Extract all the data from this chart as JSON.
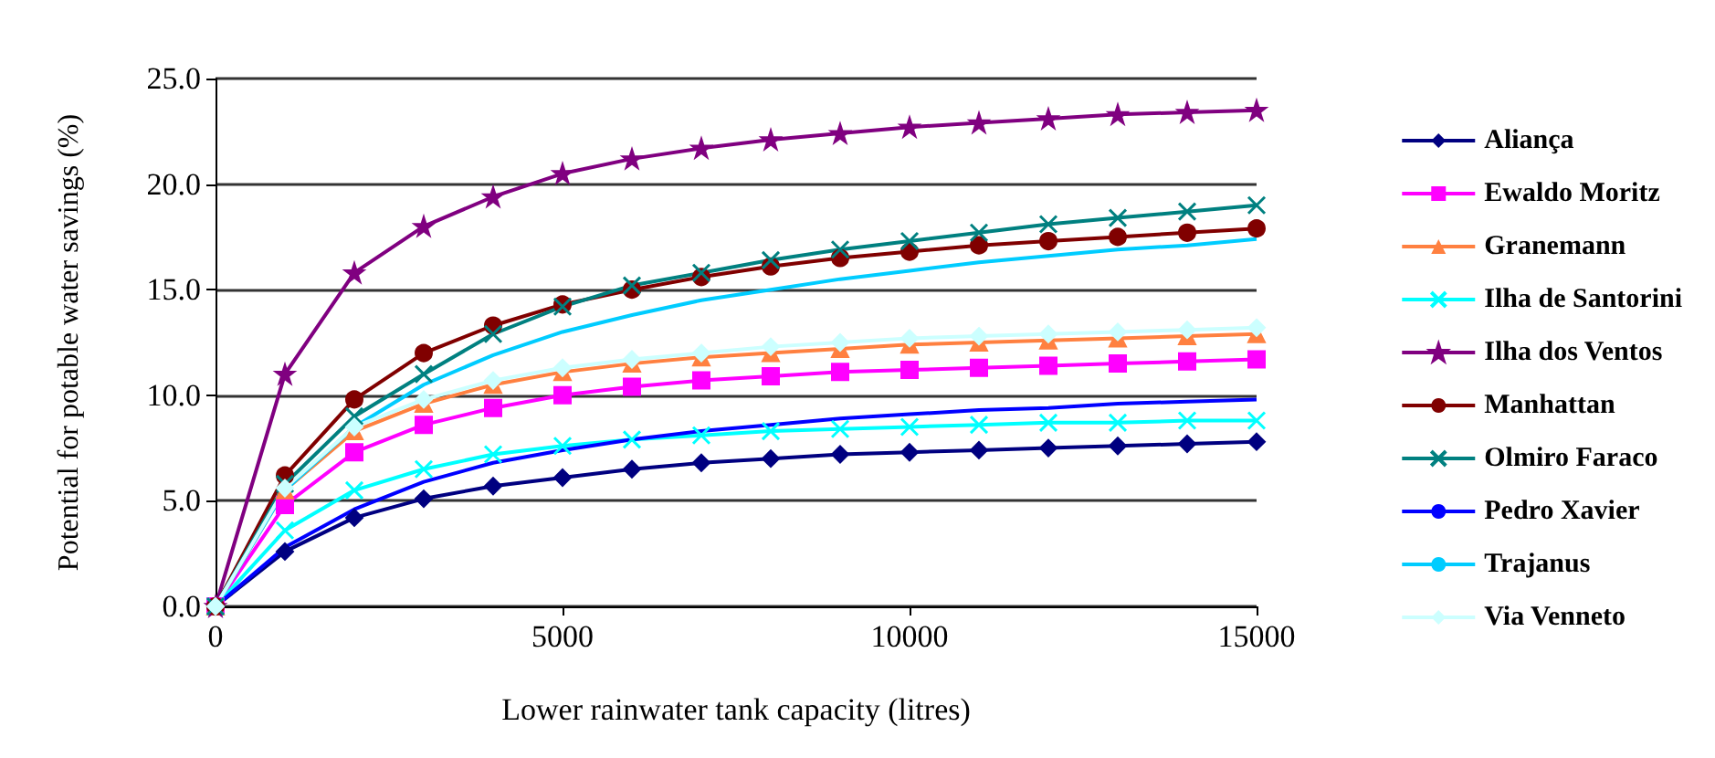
{
  "chart_data": {
    "type": "line",
    "xlabel": "Lower rainwater tank capacity (litres)",
    "ylabel": "Potential for potable water savings (%)",
    "x": [
      0,
      1000,
      2000,
      3000,
      4000,
      5000,
      6000,
      7000,
      8000,
      9000,
      10000,
      11000,
      12000,
      13000,
      14000,
      15000
    ],
    "xlim": [
      0,
      15000
    ],
    "xticks": [
      0,
      5000,
      10000,
      15000
    ],
    "ylim": [
      0,
      25
    ],
    "yticks": [
      {
        "value": 0,
        "label": "0.0"
      },
      {
        "value": 5,
        "label": "5.0"
      },
      {
        "value": 10,
        "label": "10.0"
      },
      {
        "value": 15,
        "label": "15.0"
      },
      {
        "value": 20,
        "label": "20.0"
      },
      {
        "value": 25,
        "label": "25.0"
      }
    ],
    "grid": "y",
    "legend": "right",
    "line_style": "solid",
    "series": [
      {
        "name": "Aliança",
        "color": "#000080",
        "marker": "diamond",
        "values": [
          0,
          2.6,
          4.2,
          5.1,
          5.7,
          6.1,
          6.5,
          6.8,
          7.0,
          7.2,
          7.3,
          7.4,
          7.5,
          7.6,
          7.7,
          7.8
        ]
      },
      {
        "name": "Ewaldo Moritz",
        "color": "#ff00ff",
        "marker": "square",
        "values": [
          0,
          4.8,
          7.3,
          8.6,
          9.4,
          10.0,
          10.4,
          10.7,
          10.9,
          11.1,
          11.2,
          11.3,
          11.4,
          11.5,
          11.6,
          11.7
        ]
      },
      {
        "name": "Granemann",
        "color": "#ff8040",
        "marker": "triangle",
        "values": [
          0,
          5.5,
          8.3,
          9.6,
          10.5,
          11.1,
          11.5,
          11.8,
          12.0,
          12.2,
          12.4,
          12.5,
          12.6,
          12.7,
          12.8,
          12.9
        ]
      },
      {
        "name": "Ilha de Santorini",
        "color": "#00ffff",
        "marker": "cross",
        "values": [
          0,
          3.6,
          5.5,
          6.5,
          7.2,
          7.6,
          7.9,
          8.1,
          8.3,
          8.4,
          8.5,
          8.6,
          8.7,
          8.7,
          8.8,
          8.8
        ]
      },
      {
        "name": "Ilha dos Ventos",
        "color": "#800080",
        "marker": "star",
        "values": [
          0,
          11.0,
          15.8,
          18.0,
          19.4,
          20.5,
          21.2,
          21.7,
          22.1,
          22.4,
          22.7,
          22.9,
          23.1,
          23.3,
          23.4,
          23.5
        ]
      },
      {
        "name": "Manhattan",
        "color": "#800000",
        "marker": "circle",
        "values": [
          0,
          6.2,
          9.8,
          12.0,
          13.3,
          14.3,
          15.0,
          15.6,
          16.1,
          16.5,
          16.8,
          17.1,
          17.3,
          17.5,
          17.7,
          17.9
        ]
      },
      {
        "name": "Olmiro Faraco",
        "color": "#008080",
        "marker": "cross",
        "values": [
          0,
          5.8,
          9.0,
          11.0,
          12.9,
          14.2,
          15.2,
          15.8,
          16.4,
          16.9,
          17.3,
          17.7,
          18.1,
          18.4,
          18.7,
          19.0
        ]
      },
      {
        "name": "Pedro Xavier",
        "color": "#0000ff",
        "marker": "none",
        "values": [
          0,
          2.8,
          4.6,
          5.9,
          6.8,
          7.4,
          7.9,
          8.3,
          8.6,
          8.9,
          9.1,
          9.3,
          9.4,
          9.6,
          9.7,
          9.8
        ]
      },
      {
        "name": "Trajanus",
        "color": "#00ccff",
        "marker": "none",
        "values": [
          0,
          5.5,
          8.5,
          10.5,
          11.9,
          13.0,
          13.8,
          14.5,
          15.0,
          15.5,
          15.9,
          16.3,
          16.6,
          16.9,
          17.1,
          17.4
        ]
      },
      {
        "name": "Via Venneto",
        "color": "#ccffff",
        "marker": "diamond",
        "values": [
          0,
          5.6,
          8.5,
          9.8,
          10.7,
          11.3,
          11.7,
          12.0,
          12.3,
          12.5,
          12.7,
          12.8,
          12.9,
          13.0,
          13.1,
          13.2
        ]
      }
    ]
  }
}
